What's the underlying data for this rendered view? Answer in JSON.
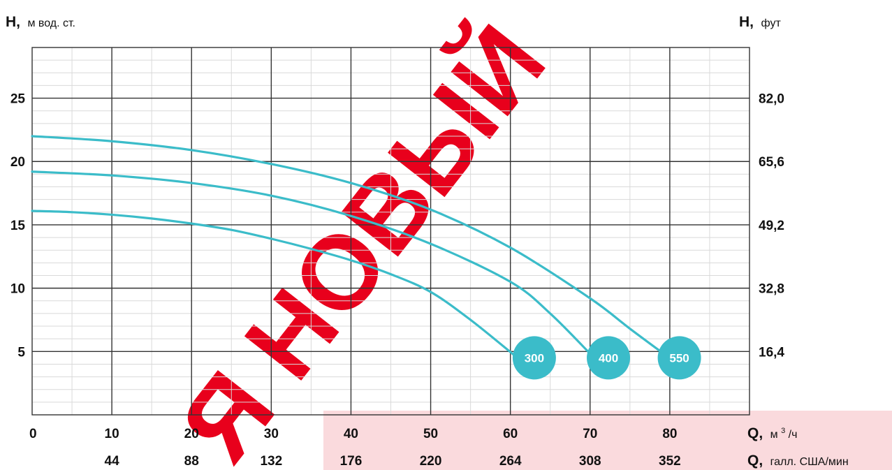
{
  "chart_data": {
    "type": "line",
    "ylabel_left": {
      "symbol": "H,",
      "unit": "м вод. ст."
    },
    "ylabel_right": {
      "symbol": "H,",
      "unit": "фут"
    },
    "xlabel_primary": {
      "symbol": "Q,",
      "unit_base": "м",
      "unit_sup": "3",
      "unit_tail": "/ч"
    },
    "xlabel_secondary": {
      "symbol": "Q,",
      "unit": "галл. США/мин"
    },
    "xlim": [
      0,
      90
    ],
    "ylim": [
      0,
      29
    ],
    "x_ticks": [
      "0",
      "10",
      "20",
      "30",
      "40",
      "50",
      "60",
      "70",
      "80"
    ],
    "x_ticks_secondary": [
      "44",
      "88",
      "132",
      "176",
      "220",
      "264",
      "308",
      "352"
    ],
    "y_ticks_left": [
      "5",
      "10",
      "15",
      "20",
      "25"
    ],
    "y_ticks_right": [
      "16,4",
      "32,8",
      "49,2",
      "65,6",
      "82,0"
    ],
    "grid": true,
    "series_color": "#3bbcc9",
    "series": [
      {
        "name": "300",
        "x": [
          0,
          5,
          10,
          15,
          20,
          25,
          30,
          35,
          40,
          45,
          50,
          55,
          60.5
        ],
        "y": [
          16.1,
          16.0,
          15.8,
          15.5,
          15.1,
          14.6,
          13.9,
          13.1,
          12.2,
          11.1,
          9.7,
          7.5,
          4.7
        ]
      },
      {
        "name": "400",
        "x": [
          0,
          10,
          20,
          30,
          40,
          50,
          60,
          65,
          70.2
        ],
        "y": [
          19.2,
          18.9,
          18.3,
          17.3,
          15.7,
          13.5,
          10.5,
          8.0,
          4.7
        ]
      },
      {
        "name": "550",
        "x": [
          0,
          10,
          20,
          30,
          40,
          50,
          60,
          70,
          75,
          79.5
        ],
        "y": [
          22.0,
          21.6,
          20.9,
          19.8,
          18.3,
          16.2,
          13.2,
          9.2,
          6.8,
          4.7
        ]
      }
    ],
    "markers": [
      {
        "label": "300",
        "x": 63,
        "y": 4.5
      },
      {
        "label": "400",
        "x": 72.3,
        "y": 4.5
      },
      {
        "label": "550",
        "x": 81.2,
        "y": 4.5
      }
    ],
    "watermark": "Я НОВЫЙ"
  }
}
